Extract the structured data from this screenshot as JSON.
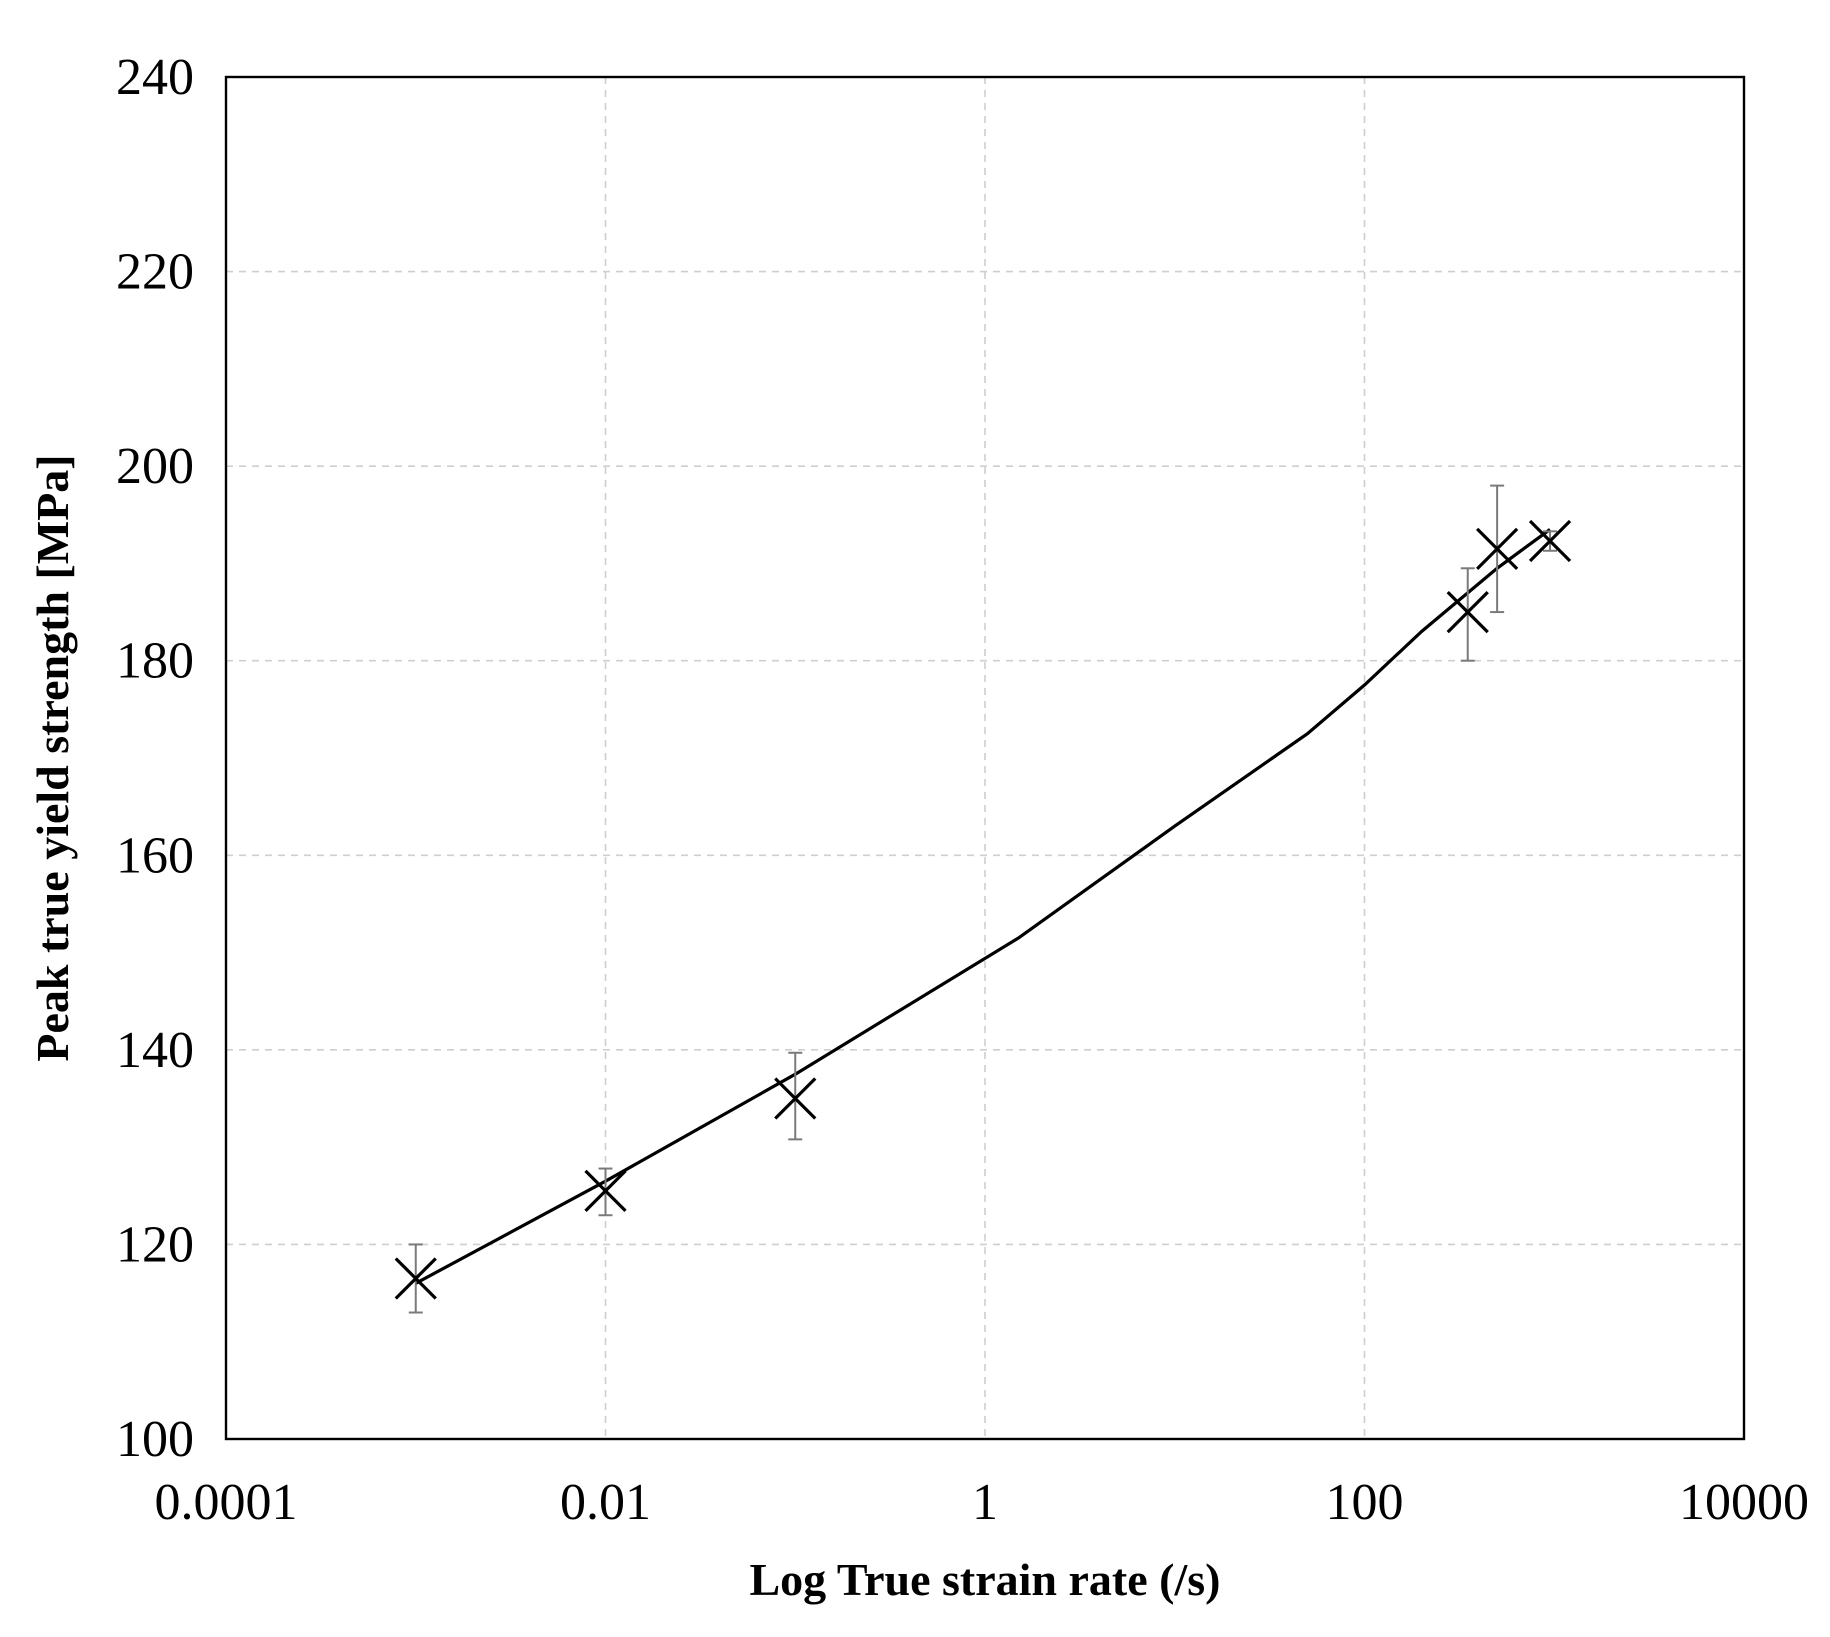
{
  "chart_data": {
    "type": "scatter",
    "title": "",
    "xlabel": "Log True strain rate (/s)",
    "ylabel": "Peak true yield strength [MPa]",
    "x_scale": "log",
    "xlim": [
      0.0001,
      10000
    ],
    "ylim": [
      100,
      240
    ],
    "x_ticks": [
      0.0001,
      0.01,
      1,
      100,
      10000
    ],
    "x_tick_labels": [
      "0.0001",
      "0.01",
      "1",
      "100",
      "10000"
    ],
    "y_ticks": [
      100,
      120,
      140,
      160,
      180,
      200,
      220,
      240
    ],
    "y_tick_labels": [
      "100",
      "120",
      "140",
      "160",
      "180",
      "200",
      "220",
      "240"
    ],
    "grid": true,
    "legend": "none",
    "series": [
      {
        "marker": "x",
        "color": "#000000",
        "points": [
          {
            "x": 0.001,
            "y": 116.5,
            "err_low": 113.0,
            "err_high": 120.0
          },
          {
            "x": 0.01,
            "y": 125.5,
            "err_low": 123.0,
            "err_high": 127.8
          },
          {
            "x": 0.1,
            "y": 135.0,
            "err_low": 130.8,
            "err_high": 139.7
          },
          {
            "x": 350,
            "y": 185.0,
            "err_low": 180.0,
            "err_high": 189.5
          },
          {
            "x": 500,
            "y": 191.5,
            "err_low": 185.0,
            "err_high": 198.0
          },
          {
            "x": 950,
            "y": 192.3,
            "err_low": 191.3,
            "err_high": 193.3
          }
        ]
      },
      {
        "type": "line",
        "color": "#000000",
        "x": [
          0.001,
          0.01,
          0.1,
          1.5,
          10,
          50,
          100,
          200,
          500,
          950
        ],
        "y": [
          116,
          126.5,
          137.5,
          151.5,
          163,
          172.5,
          177.5,
          183,
          189.5,
          193.5
        ]
      }
    ]
  }
}
